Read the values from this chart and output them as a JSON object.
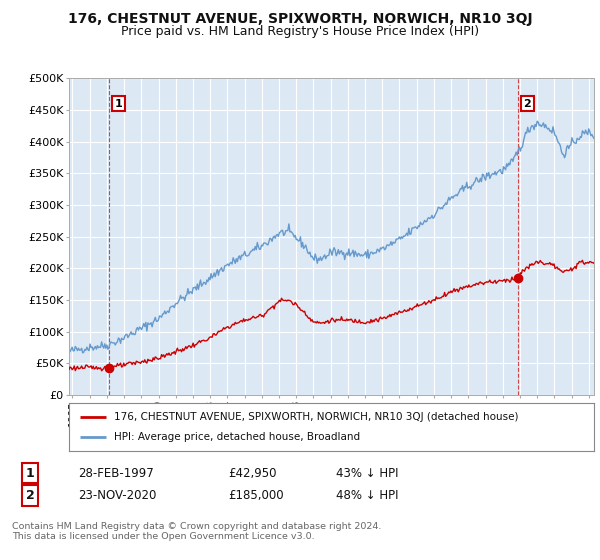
{
  "title": "176, CHESTNUT AVENUE, SPIXWORTH, NORWICH, NR10 3QJ",
  "subtitle": "Price paid vs. HM Land Registry's House Price Index (HPI)",
  "ylabel_ticks": [
    "£0",
    "£50K",
    "£100K",
    "£150K",
    "£200K",
    "£250K",
    "£300K",
    "£350K",
    "£400K",
    "£450K",
    "£500K"
  ],
  "ytick_values": [
    0,
    50000,
    100000,
    150000,
    200000,
    250000,
    300000,
    350000,
    400000,
    450000,
    500000
  ],
  "ylim": [
    0,
    500000
  ],
  "xlim_start": 1994.8,
  "xlim_end": 2025.3,
  "sale1_x": 1997.15,
  "sale1_y": 42950,
  "sale2_x": 2020.9,
  "sale2_y": 185000,
  "sale1_date": "28-FEB-1997",
  "sale1_price": "£42,950",
  "sale1_hpi": "43% ↓ HPI",
  "sale2_date": "23-NOV-2020",
  "sale2_price": "£185,000",
  "sale2_hpi": "48% ↓ HPI",
  "property_color": "#cc0000",
  "hpi_color": "#6699cc",
  "legend_property": "176, CHESTNUT AVENUE, SPIXWORTH, NORWICH, NR10 3QJ (detached house)",
  "legend_hpi": "HPI: Average price, detached house, Broadland",
  "footnote": "Contains HM Land Registry data © Crown copyright and database right 2024.\nThis data is licensed under the Open Government Licence v3.0.",
  "background_color": "#ffffff",
  "chart_bg_color": "#dce9f5",
  "grid_color": "#ffffff",
  "title_fontsize": 10,
  "subtitle_fontsize": 9,
  "tick_fontsize": 8
}
